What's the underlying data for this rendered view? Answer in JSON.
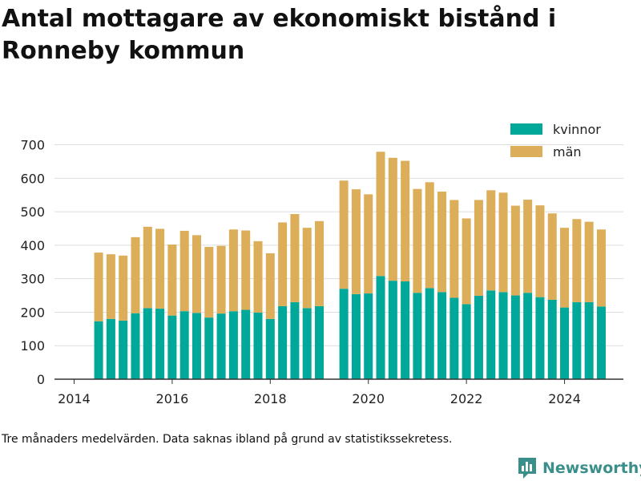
{
  "title": "Antal mottagare av ekonomiskt bistånd i Ronneby kommun",
  "footnote": "Tre månaders medelvärden. Data saknas ibland på grund av statistikssekretess.",
  "brand": {
    "name": "Newsworthy",
    "icon": "bar-chart-logo-icon"
  },
  "colors": {
    "kvinnor": "#00a89a",
    "man": "#dcae5a",
    "grid": "#dddddd",
    "text": "#222222"
  },
  "chart_data": {
    "type": "bar",
    "stacked": true,
    "x_unit": "year (quarterly)",
    "xlim": [
      2013.6,
      2025.2
    ],
    "ylim": [
      0,
      730
    ],
    "xticks": [
      2014,
      2016,
      2018,
      2020,
      2022,
      2024
    ],
    "yticks": [
      0,
      100,
      200,
      300,
      400,
      500,
      600,
      700
    ],
    "grid": true,
    "legend_position": "top-right",
    "x": [
      2014.5,
      2014.75,
      2015.0,
      2015.25,
      2015.5,
      2015.75,
      2016.0,
      2016.25,
      2016.5,
      2016.75,
      2017.0,
      2017.25,
      2017.5,
      2017.75,
      2018.0,
      2018.25,
      2018.5,
      2018.75,
      2019.0,
      2019.25,
      2019.5,
      2019.75,
      2020.0,
      2020.25,
      2020.5,
      2020.75,
      2021.0,
      2021.25,
      2021.5,
      2021.75,
      2022.0,
      2022.25,
      2022.5,
      2022.75,
      2023.0,
      2023.25,
      2023.5,
      2023.75,
      2024.0,
      2024.25,
      2024.5,
      2024.75
    ],
    "series": [
      {
        "name": "kvinnor",
        "values": [
          173,
          180,
          175,
          197,
          212,
          211,
          190,
          203,
          198,
          184,
          196,
          203,
          207,
          199,
          180,
          218,
          230,
          212,
          218,
          null,
          270,
          254,
          256,
          308,
          294,
          292,
          258,
          272,
          260,
          243,
          224,
          249,
          265,
          260,
          250,
          258,
          245,
          237,
          214,
          230,
          230,
          217
        ]
      },
      {
        "name": "män",
        "values": [
          205,
          193,
          194,
          227,
          243,
          238,
          212,
          240,
          232,
          211,
          202,
          244,
          237,
          213,
          196,
          250,
          263,
          240,
          254,
          null,
          323,
          313,
          296,
          371,
          367,
          360,
          310,
          316,
          300,
          292,
          256,
          286,
          299,
          297,
          268,
          278,
          274,
          258,
          238,
          248,
          240,
          230
        ]
      }
    ]
  }
}
